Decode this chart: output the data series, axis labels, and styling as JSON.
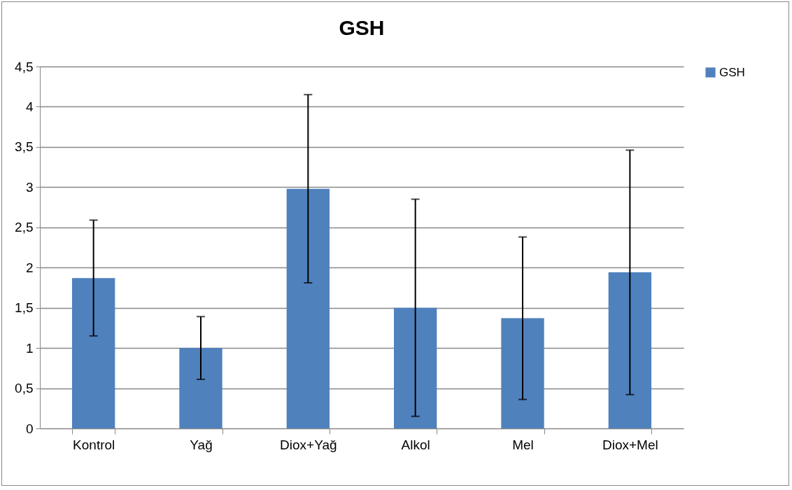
{
  "chart_data": {
    "type": "bar",
    "title": "GSH",
    "categories": [
      "Kontrol",
      "Yağ",
      "Diox+Yağ",
      "Alkol",
      "Mel",
      "Diox+Mel"
    ],
    "series": [
      {
        "name": "GSH",
        "color": "#4f81bd",
        "values": [
          1.87,
          1.0,
          2.98,
          1.5,
          1.37,
          1.94
        ],
        "errors": [
          0.72,
          0.39,
          1.17,
          1.35,
          1.01,
          1.52
        ]
      }
    ],
    "ylim": [
      0,
      4.5
    ],
    "yticks": [
      0,
      {
        "value": 0.5,
        "label": "0,5"
      },
      1,
      {
        "value": 1.5,
        "label": "1,5"
      },
      2,
      {
        "value": 2.5,
        "label": "2,5"
      },
      3,
      {
        "value": 3.5,
        "label": "3,5"
      },
      4,
      {
        "value": 4.5,
        "label": "4,5"
      }
    ],
    "grid": "y",
    "legend": "right"
  }
}
